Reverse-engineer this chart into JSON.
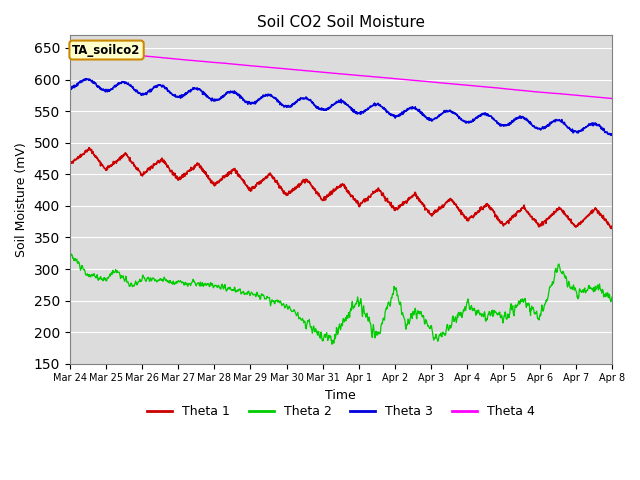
{
  "title": "Soil CO2 Soil Moisture",
  "xlabel": "Time",
  "ylabel": "Soil Moisture (mV)",
  "ylim": [
    150,
    670
  ],
  "yticks": [
    150,
    200,
    250,
    300,
    350,
    400,
    450,
    500,
    550,
    600,
    650
  ],
  "annotation_text": "TA_soilco2",
  "annotation_bbox_facecolor": "#ffffcc",
  "annotation_bbox_edgecolor": "#cc8800",
  "bg_color": "#dcdcdc",
  "series": {
    "Theta 1": {
      "color": "#cc0000"
    },
    "Theta 2": {
      "color": "#00cc00"
    },
    "Theta 3": {
      "color": "#0000dd"
    },
    "Theta 4": {
      "color": "#ff00ff"
    }
  },
  "x_labels": [
    "Mar 24",
    "Mar 25",
    "Mar 26",
    "Mar 27",
    "Mar 28",
    "Mar 29",
    "Mar 30",
    "Mar 31",
    "Apr 1",
    "Apr 2",
    "Apr 3",
    "Apr 4",
    "Apr 5",
    "Apr 6",
    "Apr 7",
    "Apr 8"
  ],
  "n_points": 1440
}
